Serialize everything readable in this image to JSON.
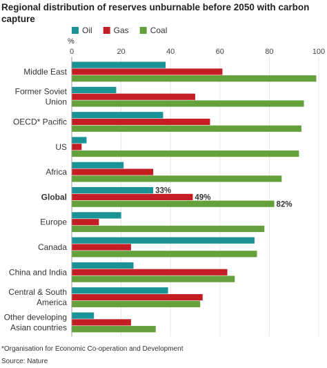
{
  "chart_data": {
    "type": "bar",
    "orientation": "horizontal",
    "title": "Regional distribution of reserves unburnable before 2050 with carbon capture",
    "unit_label": "%",
    "xlim": [
      0,
      100
    ],
    "ticks": [
      0,
      20,
      40,
      60,
      80,
      100
    ],
    "legend_position": "top-left",
    "grid": true,
    "categories": [
      [
        "Middle East"
      ],
      [
        "Former Soviet",
        "Union"
      ],
      [
        "OECD* Pacific"
      ],
      [
        "US"
      ],
      [
        "Africa"
      ],
      [
        "Global"
      ],
      [
        "Europe"
      ],
      [
        "Canada"
      ],
      [
        "China and India"
      ],
      [
        "Central & South",
        "America"
      ],
      [
        "Other developing",
        "Asian countries"
      ]
    ],
    "highlight_category_index": 5,
    "series": [
      {
        "name": "Oil",
        "color": "#1a9296",
        "values": [
          38,
          18,
          37,
          6,
          21,
          33,
          20,
          74,
          25,
          39,
          9
        ]
      },
      {
        "name": "Gas",
        "color": "#c41e24",
        "values": [
          61,
          50,
          56,
          4,
          33,
          49,
          11,
          24,
          63,
          53,
          24
        ]
      },
      {
        "name": "Coal",
        "color": "#64a13a",
        "values": [
          99,
          94,
          93,
          92,
          85,
          82,
          78,
          75,
          66,
          52,
          34
        ]
      }
    ],
    "data_labels": [
      {
        "category_index": 5,
        "series_index": 0,
        "text": "33%"
      },
      {
        "category_index": 5,
        "series_index": 1,
        "text": "49%"
      },
      {
        "category_index": 5,
        "series_index": 2,
        "text": "82%"
      }
    ]
  },
  "footnote": "*Organisation for Economic Co-operation and Development",
  "source": "Source: Nature"
}
